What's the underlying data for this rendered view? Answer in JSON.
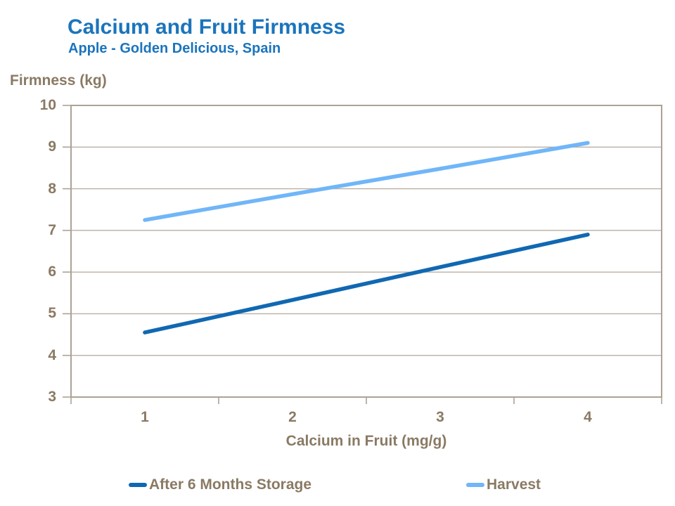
{
  "header": {
    "title": "Calcium and Fruit Firmness",
    "subtitle": "Apple - Golden Delicious, Spain"
  },
  "axes": {
    "y_title": "Firmness (kg)",
    "x_title": "Calcium in Fruit (mg/g)"
  },
  "legend": {
    "position": "bottom",
    "items": [
      {
        "label": "After 6 Months Storage",
        "color": "#1068B2"
      },
      {
        "label": "Harvest",
        "color": "#70B6F8"
      }
    ]
  },
  "colors": {
    "title_blue": "#1B74BC",
    "axis_text": "#8A7A64",
    "axis_line": "#ADA295",
    "gridline": "#BAAFA3",
    "series_storage": "#1068B2",
    "series_harvest": "#70B6F8",
    "background": "#FFFFFF"
  },
  "chart_data": {
    "type": "line",
    "title": "Calcium and Fruit Firmness",
    "subtitle": "Apple - Golden Delicious, Spain",
    "xlabel": "Calcium in Fruit (mg/g)",
    "ylabel": "Firmness (kg)",
    "x": [
      1,
      2,
      3,
      4
    ],
    "x_axis_type": "category",
    "series": [
      {
        "name": "After 6 Months Storage",
        "color": "#1068B2",
        "values": [
          4.55,
          5.33,
          6.12,
          6.9
        ]
      },
      {
        "name": "Harvest",
        "color": "#70B6F8",
        "values": [
          7.25,
          7.87,
          8.48,
          9.1
        ]
      }
    ],
    "ylim": [
      3,
      10
    ],
    "y_ticks": [
      3,
      4,
      5,
      6,
      7,
      8,
      9,
      10
    ],
    "grid": "horizontal",
    "legend_position": "bottom",
    "line_width": 5.5
  }
}
